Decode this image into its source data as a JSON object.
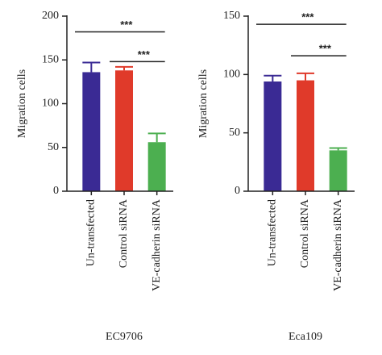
{
  "chart_data": [
    {
      "type": "bar",
      "xlabel": "EC9706",
      "ylabel": "Migration cells",
      "categories": [
        "Un-transfected",
        "Control siRNA",
        "VE-cadherin siRNA"
      ],
      "values": [
        136,
        138,
        56
      ],
      "errors": [
        11,
        4,
        10
      ],
      "colors": [
        "#3a2a94",
        "#e03a2a",
        "#4caf50"
      ],
      "ylim": [
        0,
        200
      ],
      "yticks": [
        0,
        50,
        100,
        150,
        200
      ],
      "annotations": [
        {
          "text": "***",
          "from": 0,
          "to": 2,
          "y": 182
        },
        {
          "text": "***",
          "from": 1,
          "to": 2,
          "y": 148
        }
      ]
    },
    {
      "type": "bar",
      "xlabel": "Eca109",
      "ylabel": "Migration cells",
      "categories": [
        "Un-transfected",
        "Control siRNA",
        "VE-cadherin siRNA"
      ],
      "values": [
        94,
        95,
        35
      ],
      "errors": [
        5,
        6,
        2
      ],
      "colors": [
        "#3a2a94",
        "#e03a2a",
        "#4caf50"
      ],
      "ylim": [
        0,
        150
      ],
      "yticks": [
        0,
        50,
        100,
        150
      ],
      "annotations": [
        {
          "text": "***",
          "from": 0,
          "to": 2,
          "y": 143
        },
        {
          "text": "***",
          "from": 1,
          "to": 2,
          "y": 116
        }
      ]
    }
  ]
}
